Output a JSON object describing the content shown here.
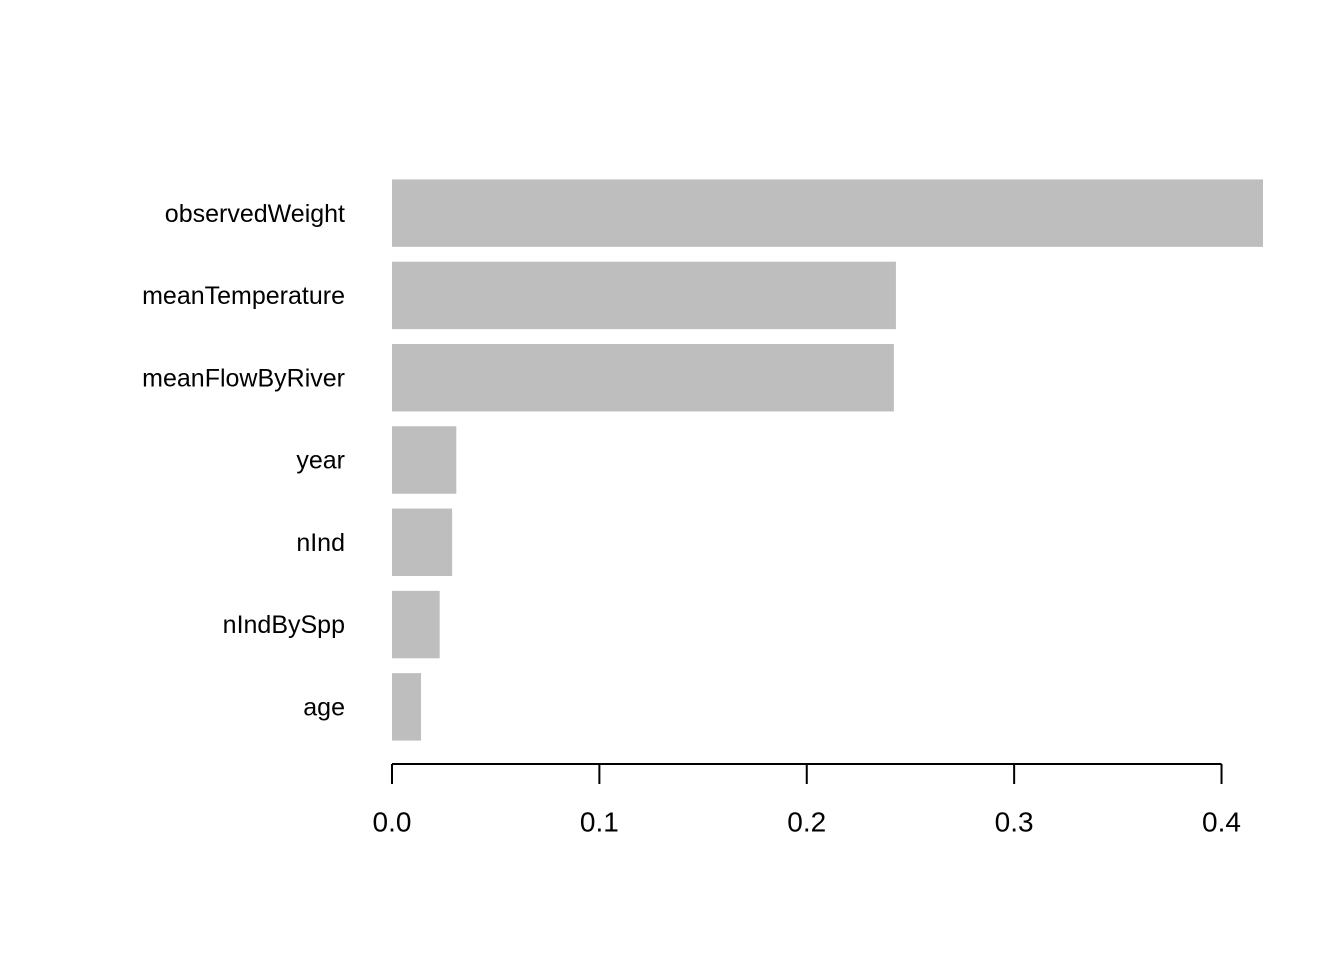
{
  "chart_data": {
    "type": "barh",
    "categories": [
      "observedWeight",
      "meanTemperature",
      "meanFlowByRiver",
      "year",
      "nInd",
      "nIndBySpp",
      "age"
    ],
    "values": [
      0.42,
      0.243,
      0.242,
      0.031,
      0.029,
      0.023,
      0.014
    ],
    "color": "#bebebe",
    "xlim": [
      0,
      0.42
    ],
    "xticks": [
      {
        "value": 0,
        "label": "0.0"
      },
      0.1,
      0.2,
      0.3,
      0.4
    ]
  }
}
